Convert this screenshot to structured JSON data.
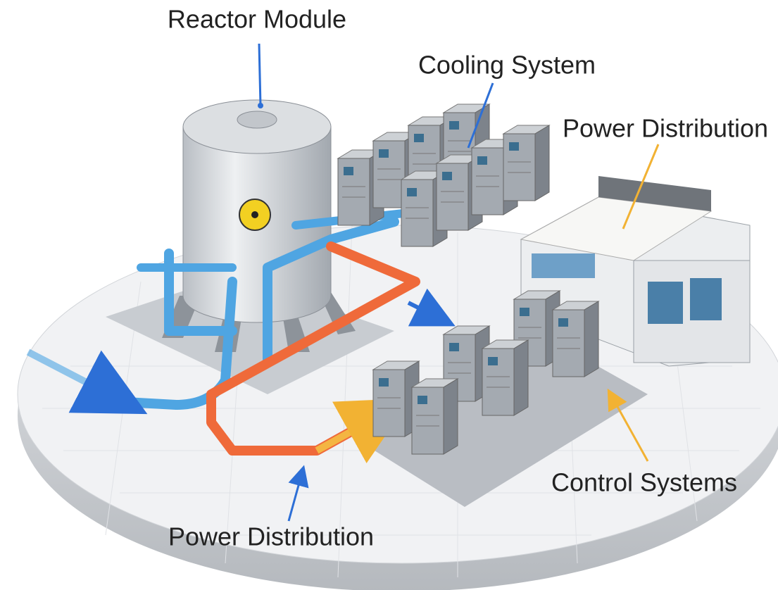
{
  "labels": {
    "reactor": "Reactor Module",
    "cooling": "Cooling System",
    "power_top": "Power Distribution",
    "control": "Control Systems",
    "power_bottom": "Power Distribution"
  }
}
